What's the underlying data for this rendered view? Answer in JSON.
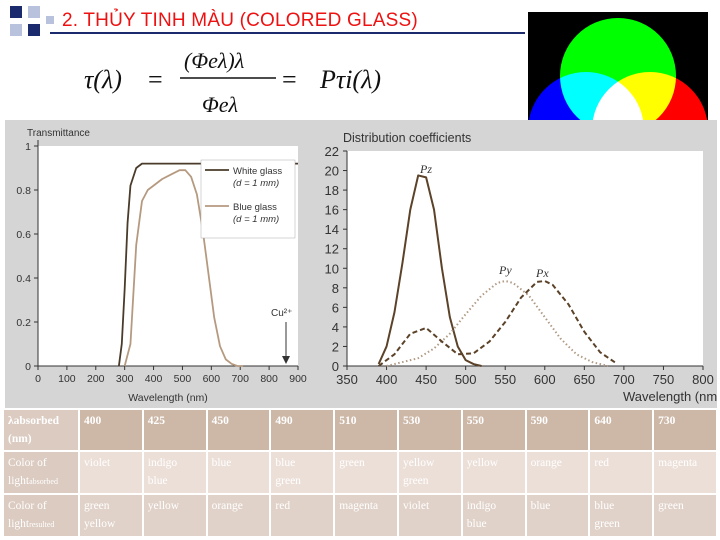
{
  "slide": {
    "title": "2. THỦY TINH MÀU (COLORED GLASS)",
    "formula": {
      "lhs": "τ(λ)",
      "numerator": "(Φeλ)λ",
      "denominator": "Φeλ",
      "rhs": "Pτi(λ)"
    },
    "colors": {
      "title": "#ee1111",
      "rule": "#1a2a6c",
      "bullet_dark": "#1a2a6c",
      "bullet_light": "#b8c2dc"
    }
  },
  "transmittance_chart": {
    "ylabel": "Transmittance",
    "xlabel": "Wavelength (nm)",
    "legend": [
      {
        "label": "White glass",
        "sub": "(d = 1 mm)"
      },
      {
        "label": "Blue glass",
        "sub": "(d = 1 mm)"
      }
    ],
    "annotation": "Cu²⁺",
    "chart_data": {
      "type": "line",
      "xlim": [
        0,
        900
      ],
      "ylim": [
        0,
        1
      ],
      "xticks": [
        0,
        100,
        200,
        300,
        400,
        500,
        600,
        700,
        800,
        900
      ],
      "yticks": [
        0,
        0.2,
        0.4,
        0.6,
        0.8,
        1
      ],
      "ytick_labels": [
        "0",
        "0.2",
        "0.4",
        "0.6",
        "0.8",
        "1"
      ],
      "series": [
        {
          "name": "White glass",
          "color": "#4a3b2a",
          "x": [
            280,
            290,
            300,
            310,
            320,
            340,
            360,
            400,
            600,
            700,
            800,
            900
          ],
          "y": [
            0.0,
            0.1,
            0.35,
            0.65,
            0.82,
            0.9,
            0.92,
            0.92,
            0.92,
            0.92,
            0.92,
            0.92
          ]
        },
        {
          "name": "Blue glass",
          "color": "#b59a80",
          "x": [
            300,
            320,
            340,
            360,
            380,
            400,
            430,
            460,
            490,
            510,
            530,
            550,
            570,
            590,
            610,
            630,
            650,
            670,
            690,
            710
          ],
          "y": [
            0.0,
            0.1,
            0.55,
            0.75,
            0.8,
            0.82,
            0.85,
            0.87,
            0.89,
            0.89,
            0.86,
            0.78,
            0.62,
            0.42,
            0.22,
            0.09,
            0.03,
            0.01,
            0.0,
            0.0
          ]
        }
      ]
    }
  },
  "distribution_chart": {
    "title": "Distribution coefficients",
    "xlabel": "Wavelength (nm)",
    "labels": {
      "pz": "Pz",
      "py": "Py",
      "px": "Px"
    },
    "chart_data": {
      "type": "line",
      "xlim": [
        350,
        800
      ],
      "ylim": [
        0,
        22
      ],
      "xticks": [
        350,
        400,
        450,
        500,
        550,
        600,
        650,
        700,
        750,
        800
      ],
      "yticks": [
        0,
        2,
        4,
        6,
        8,
        10,
        12,
        14,
        16,
        18,
        20,
        22
      ],
      "series": [
        {
          "name": "Pz",
          "color": "#5b4228",
          "style": "solid",
          "x": [
            390,
            400,
            410,
            420,
            430,
            440,
            450,
            460,
            470,
            480,
            490,
            500,
            510,
            520
          ],
          "y": [
            0.2,
            2.0,
            5.5,
            10.5,
            16.0,
            19.5,
            19.3,
            16.0,
            10.0,
            5.0,
            2.0,
            0.6,
            0.2,
            0.0
          ]
        },
        {
          "name": "Py",
          "color": "#b09a84",
          "style": "dotted",
          "x": [
            400,
            440,
            460,
            480,
            500,
            520,
            540,
            550,
            560,
            580,
            600,
            620,
            640,
            660,
            680
          ],
          "y": [
            0.0,
            0.8,
            1.8,
            3.3,
            5.3,
            7.2,
            8.5,
            8.7,
            8.5,
            7.2,
            5.0,
            2.8,
            1.2,
            0.4,
            0.0
          ]
        },
        {
          "name": "Px",
          "color": "#5b4228",
          "style": "dashed",
          "x": [
            390,
            410,
            430,
            450,
            470,
            490,
            510,
            530,
            550,
            570,
            590,
            600,
            610,
            630,
            650,
            670,
            690
          ],
          "y": [
            0.0,
            1.2,
            3.3,
            3.9,
            2.5,
            1.2,
            1.3,
            2.5,
            4.5,
            7.0,
            8.6,
            8.7,
            8.3,
            6.3,
            3.5,
            1.4,
            0.3
          ]
        }
      ]
    }
  },
  "rgb_venn": {
    "colors": {
      "red": "#ff0000",
      "green": "#00ff00",
      "blue": "#0000ff"
    }
  },
  "table": {
    "head": {
      "absorbed": "λabsorbed",
      "unit": "(nm)",
      "color_of_light": "Color of",
      "absorbed_light": "light",
      "absorbed_sub": "absorbed",
      "resulted_light": "light",
      "resulted_sub": "resulted"
    },
    "columns": [
      {
        "wavelength": "400",
        "absorbed": [
          "violet"
        ],
        "resulted": [
          "green",
          "yellow"
        ]
      },
      {
        "wavelength": "425",
        "absorbed": [
          "indigo",
          "blue"
        ],
        "resulted": [
          "yellow"
        ]
      },
      {
        "wavelength": "450",
        "absorbed": [
          "blue"
        ],
        "resulted": [
          "orange"
        ]
      },
      {
        "wavelength": "490",
        "absorbed": [
          "blue",
          "green"
        ],
        "resulted": [
          "red"
        ]
      },
      {
        "wavelength": "510",
        "absorbed": [
          "green"
        ],
        "resulted": [
          "magenta"
        ]
      },
      {
        "wavelength": "530",
        "absorbed": [
          "yellow",
          "green"
        ],
        "resulted": [
          "violet"
        ]
      },
      {
        "wavelength": "550",
        "absorbed": [
          "yellow"
        ],
        "resulted": [
          "indigo",
          "blue"
        ]
      },
      {
        "wavelength": "590",
        "absorbed": [
          "orange"
        ],
        "resulted": [
          "blue"
        ]
      },
      {
        "wavelength": "640",
        "absorbed": [
          "red"
        ],
        "resulted": [
          "blue",
          "green"
        ]
      },
      {
        "wavelength": "730",
        "absorbed": [
          "magenta"
        ],
        "resulted": [
          "green"
        ]
      }
    ]
  }
}
